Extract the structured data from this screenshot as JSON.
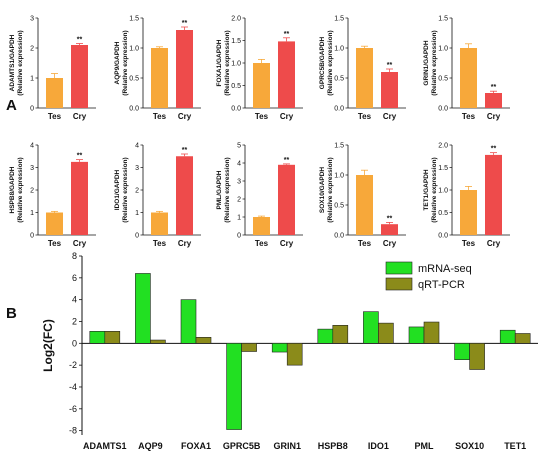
{
  "panel_labels": {
    "a": "A",
    "b": "B"
  },
  "chart_data": [
    {
      "type": "bar",
      "panel": "A",
      "subcharts": [
        {
          "ylabel": "ADAMTS1/GAPDH",
          "ylabel2": "(Relative expression)",
          "categories": [
            "Tes",
            "Cry"
          ],
          "values": [
            1.0,
            2.1
          ],
          "errors": [
            0.15,
            0.05
          ],
          "yticks": [
            "0",
            "1",
            "2",
            "3"
          ],
          "ylim": [
            0,
            3
          ],
          "significance": "**"
        },
        {
          "ylabel": "AQP9/GAPDH",
          "ylabel2": "(Relative expression)",
          "categories": [
            "Tes",
            "Cry"
          ],
          "values": [
            1.0,
            1.3
          ],
          "errors": [
            0.02,
            0.05
          ],
          "yticks": [
            "0.0",
            "0.5",
            "1.0",
            "1.5"
          ],
          "ylim": [
            0,
            1.5
          ],
          "significance": "**"
        },
        {
          "ylabel": "FOXA1/GAPDH",
          "ylabel2": "(Relative expression)",
          "categories": [
            "Tes",
            "Cry"
          ],
          "values": [
            1.0,
            1.48
          ],
          "errors": [
            0.08,
            0.08
          ],
          "yticks": [
            "0.0",
            "0.5",
            "1.0",
            "1.5",
            "2.0"
          ],
          "ylim": [
            0,
            2
          ],
          "significance": "**"
        },
        {
          "ylabel": "GPRC5B/GAPDH",
          "ylabel2": "(Relative expression)",
          "categories": [
            "Tes",
            "Cry"
          ],
          "values": [
            1.0,
            0.6
          ],
          "errors": [
            0.03,
            0.05
          ],
          "yticks": [
            "0.0",
            "0.5",
            "1.0",
            "1.5"
          ],
          "ylim": [
            0,
            1.5
          ],
          "significance": "**"
        },
        {
          "ylabel": "GRIN1/GAPDH",
          "ylabel2": "(Relative expression)",
          "categories": [
            "Tes",
            "Cry"
          ],
          "values": [
            1.0,
            0.25
          ],
          "errors": [
            0.07,
            0.03
          ],
          "yticks": [
            "0.0",
            "0.5",
            "1.0",
            "1.5"
          ],
          "ylim": [
            0,
            1.5
          ],
          "significance": "**"
        },
        {
          "ylabel": "HSPB8/GAPDH",
          "ylabel2": "(Relative expression)",
          "categories": [
            "Tes",
            "Cry"
          ],
          "values": [
            1.0,
            3.25
          ],
          "errors": [
            0.05,
            0.1
          ],
          "yticks": [
            "0",
            "1",
            "2",
            "3",
            "4"
          ],
          "ylim": [
            0,
            4
          ],
          "significance": "**"
        },
        {
          "ylabel": "IDO1/GAPDH",
          "ylabel2": "(Relative expression)",
          "categories": [
            "Tes",
            "Cry"
          ],
          "values": [
            1.0,
            3.5
          ],
          "errors": [
            0.05,
            0.1
          ],
          "yticks": [
            "0",
            "1",
            "2",
            "3",
            "4"
          ],
          "ylim": [
            0,
            4
          ],
          "significance": "**"
        },
        {
          "ylabel": "PML/GAPDH",
          "ylabel2": "(Relative expression)",
          "categories": [
            "Tes",
            "Cry"
          ],
          "values": [
            1.0,
            3.9
          ],
          "errors": [
            0.05,
            0.05
          ],
          "yticks": [
            "0",
            "1",
            "2",
            "3",
            "4",
            "5"
          ],
          "ylim": [
            0,
            5
          ],
          "significance": "**"
        },
        {
          "ylabel": "SOX10/GAPDH",
          "ylabel2": "(Relative expression)",
          "categories": [
            "Tes",
            "Cry"
          ],
          "values": [
            1.0,
            0.18
          ],
          "errors": [
            0.08,
            0.03
          ],
          "yticks": [
            "0.0",
            "0.5",
            "1.0",
            "1.5"
          ],
          "ylim": [
            0,
            1.5
          ],
          "significance": "**"
        },
        {
          "ylabel": "TET1/GAPDH",
          "ylabel2": "(Relative expression)",
          "categories": [
            "Tes",
            "Cry"
          ],
          "values": [
            1.0,
            1.78
          ],
          "errors": [
            0.08,
            0.05
          ],
          "yticks": [
            "0.0",
            "0.5",
            "1.0",
            "1.5",
            "2.0"
          ],
          "ylim": [
            0,
            2
          ],
          "significance": "**"
        }
      ],
      "colors": {
        "tes": "#f7a83a",
        "cry": "#ee4b4b"
      }
    },
    {
      "type": "bar",
      "panel": "B",
      "ylabel": "Log2(FC)",
      "categories": [
        "ADAMTS1",
        "AQP9",
        "FOXA1",
        "GPRC5B",
        "GRIN1",
        "HSPB8",
        "IDO1",
        "PML",
        "SOX10",
        "TET1"
      ],
      "yticks": [
        "8",
        "6",
        "4",
        "2",
        "0",
        "-2",
        "-4",
        "-6",
        "-8"
      ],
      "ylim": [
        -8.4,
        8
      ],
      "series": [
        {
          "name": "mRNA-seq",
          "color": "#22e022",
          "values": [
            1.1,
            6.4,
            4.0,
            -7.9,
            -0.8,
            1.3,
            2.9,
            1.5,
            -1.5,
            1.2
          ]
        },
        {
          "name": "qRT-PCR",
          "color": "#8b8b1a",
          "values": [
            1.1,
            0.3,
            0.55,
            -0.75,
            -2.0,
            1.65,
            1.85,
            1.95,
            -2.4,
            0.9
          ]
        }
      ],
      "legend": "top-right"
    }
  ]
}
